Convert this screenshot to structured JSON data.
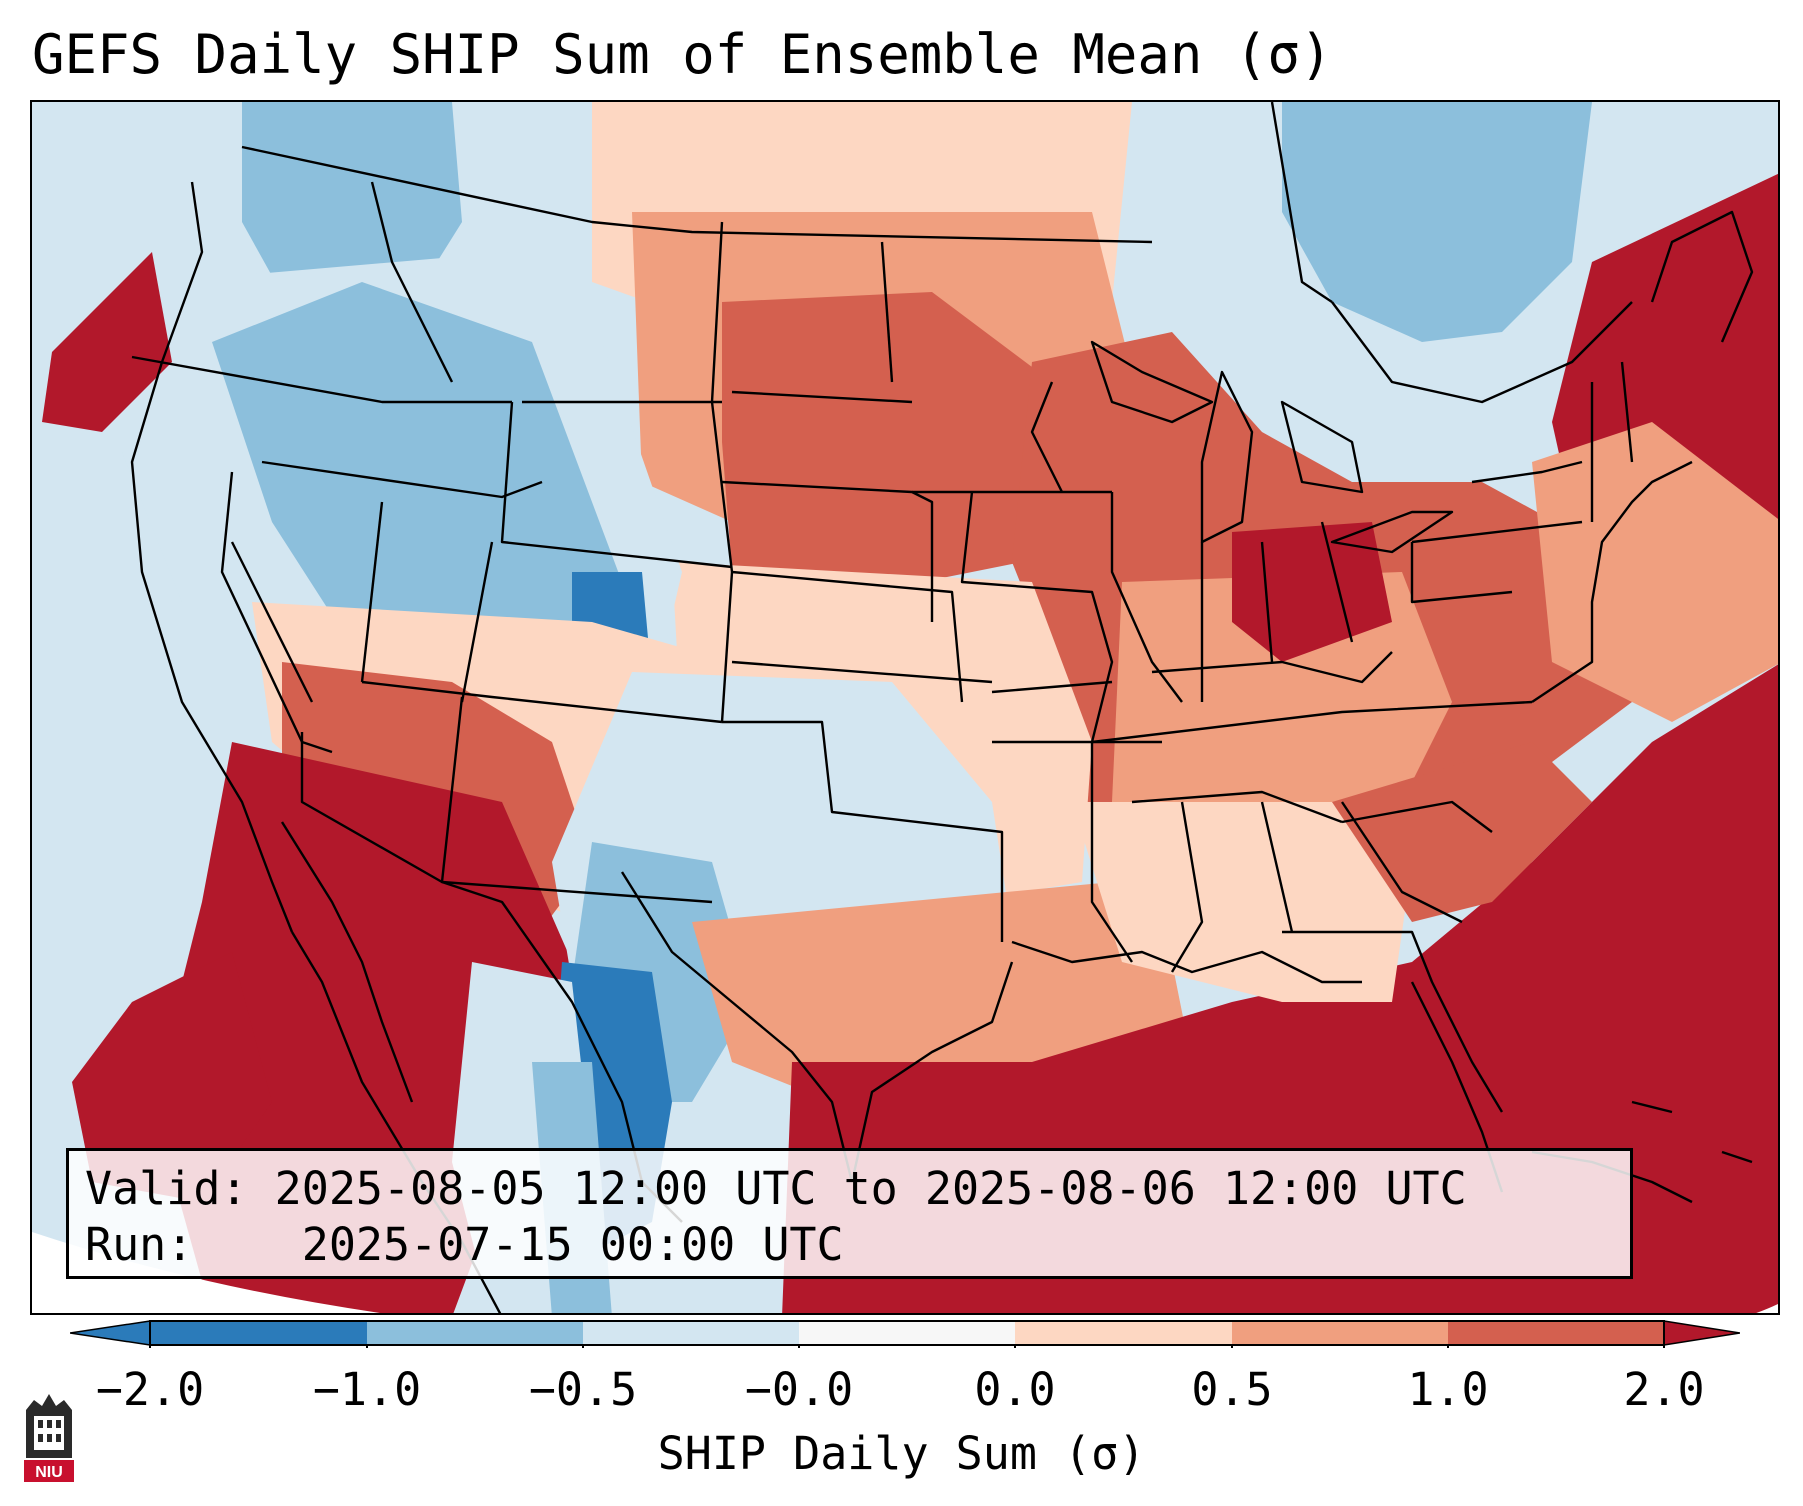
{
  "title": "GEFS Daily SHIP Sum of Ensemble Mean (σ)",
  "info": {
    "valid_label": "Valid:",
    "valid_value": "2025-08-05 12:00 UTC to 2025-08-06 12:00 UTC",
    "run_label": "Run:",
    "run_value": "2025-07-15 00:00 UTC"
  },
  "colorbar": {
    "label": "SHIP Daily Sum (σ)",
    "ticks": [
      "−2.0",
      "−1.0",
      "−0.5",
      "−0.0",
      "0.0",
      "0.5",
      "1.0",
      "2.0"
    ],
    "colors": [
      "#2b7bba",
      "#8cbfdc",
      "#d3e6f1",
      "#f7f7f7",
      "#fdd7c2",
      "#f09f7f",
      "#d4604f",
      "#b2182b"
    ],
    "extend_under_color": "#2b7bba",
    "extend_over_color": "#b2182b"
  },
  "logo": {
    "text": "NIU",
    "colors": {
      "tower": "#2a2a2a",
      "badge": "#c8102e"
    }
  },
  "map": {
    "region": "Continental United States",
    "colors": {
      "strong_negative": "#2b7bba",
      "negative": "#8cbfdc",
      "slight_negative": "#d3e6f1",
      "neutral": "#f7f7f7",
      "slight_positive": "#fdd7c2",
      "positive": "#f09f7f",
      "strong_positive": "#d4604f",
      "extreme_positive": "#b2182b"
    }
  }
}
